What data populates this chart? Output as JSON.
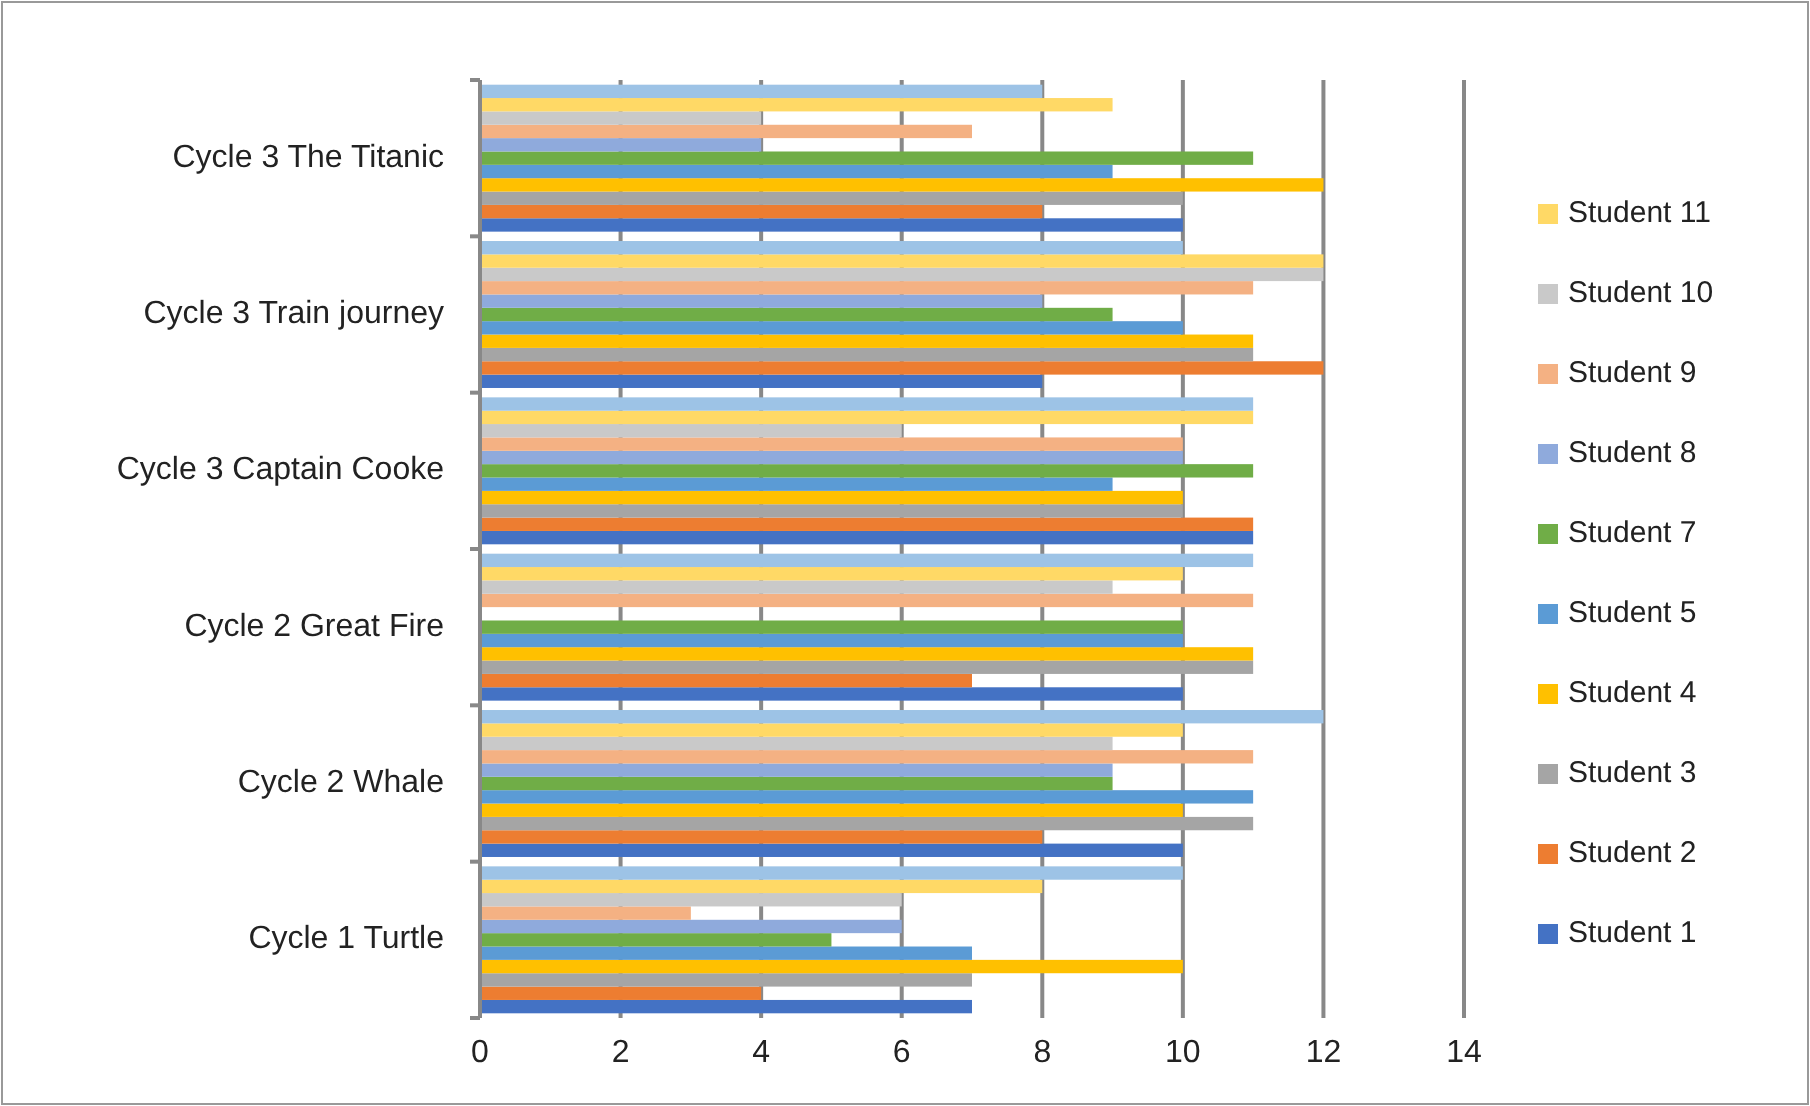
{
  "chart_data": {
    "type": "bar",
    "orientation": "horizontal",
    "categories": [
      "Cycle 3 The Titanic",
      "Cycle 3 Train journey",
      "Cycle 3 Captain Cooke",
      "Cycle 2 Great Fire",
      "Cycle 2 Whale",
      "Cycle 1 Turtle"
    ],
    "series": [
      {
        "name": "Student 1",
        "color": "#4472c4",
        "values": [
          10,
          8,
          11,
          10,
          10,
          7
        ]
      },
      {
        "name": "Student 2",
        "color": "#ed7d31",
        "values": [
          8,
          12,
          11,
          7,
          8,
          4
        ]
      },
      {
        "name": "Student 3",
        "color": "#a5a5a5",
        "values": [
          10,
          11,
          10,
          11,
          11,
          7
        ]
      },
      {
        "name": "Student 4",
        "color": "#ffc000",
        "values": [
          12,
          11,
          10,
          11,
          10,
          10
        ]
      },
      {
        "name": "Student 5",
        "color": "#5b9bd5",
        "values": [
          9,
          10,
          9,
          10,
          11,
          7
        ]
      },
      {
        "name": "Student 7",
        "color": "#70ad47",
        "values": [
          11,
          9,
          11,
          10,
          9,
          5
        ]
      },
      {
        "name": "Student 8",
        "color": "#8faadc",
        "values": [
          4,
          8,
          10,
          null,
          9,
          6
        ]
      },
      {
        "name": "Student 9",
        "color": "#f4b183",
        "values": [
          7,
          11,
          10,
          11,
          11,
          3
        ]
      },
      {
        "name": "Student 10",
        "color": "#c9c9c9",
        "values": [
          4,
          12,
          6,
          9,
          9,
          6
        ]
      },
      {
        "name": "Student 11",
        "color": "#ffd966",
        "values": [
          9,
          12,
          11,
          10,
          10,
          8
        ]
      },
      {
        "color": "#9dc3e6",
        "values": [
          8,
          10,
          11,
          11,
          12,
          10
        ]
      }
    ],
    "xlim": [
      0,
      14
    ],
    "xticks": [
      0,
      2,
      4,
      6,
      8,
      10,
      12,
      14
    ],
    "grid": "x",
    "legend": "right"
  }
}
